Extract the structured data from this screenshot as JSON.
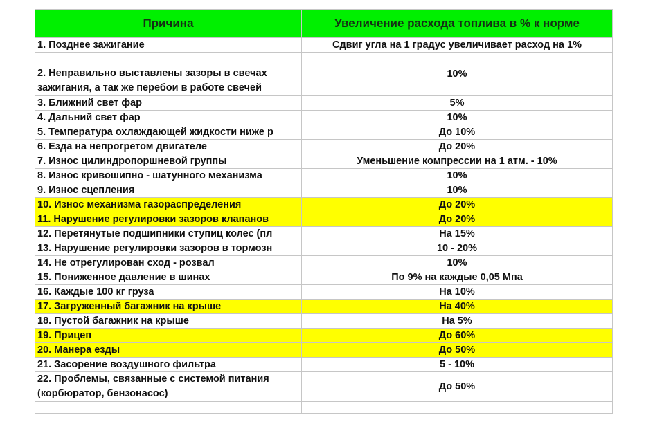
{
  "header": {
    "reason": "Причина",
    "increase": "Увеличение расхода топлива в % к норме"
  },
  "colors": {
    "header_bg": "#00f000",
    "highlight": "#ffff00",
    "grid": "#c6c6c6"
  },
  "rows": [
    {
      "reason": "1. Позднее зажигание",
      "value": "Сдвиг угла на 1 градус увеличивает расход на 1%",
      "highlighted": false
    },
    {
      "reason": "2. Неправильно выставлены зазоры в свечах зажигания, а так же перебои в работе свечей",
      "value": "10%",
      "highlighted": false
    },
    {
      "reason": "3. Ближний свет фар",
      "value": "5%",
      "highlighted": false
    },
    {
      "reason": "4. Дальний свет фар",
      "value": "10%",
      "highlighted": false
    },
    {
      "reason": "5. Температура охлаждающей жидкости ниже р",
      "value": "До 10%",
      "highlighted": false
    },
    {
      "reason": "6. Езда на непрогретом двигателе",
      "value": "До 20%",
      "highlighted": false
    },
    {
      "reason": "7. Износ цилиндропоршневой группы",
      "value": "Уменьшение компрессии на 1 атм. - 10%",
      "highlighted": false
    },
    {
      "reason": "8. Износ кривошипно - шатунного механизма",
      "value": "10%",
      "highlighted": false
    },
    {
      "reason": "9. Износ сцепления",
      "value": "10%",
      "highlighted": false
    },
    {
      "reason": "10. Износ механизма газораспределения",
      "value": "До 20%",
      "highlighted": true
    },
    {
      "reason": "11. Нарушение регулировки зазоров клапанов",
      "value": "До 20%",
      "highlighted": true
    },
    {
      "reason": "12. Перетянутые подшипники ступиц колес (пл",
      "value": "На 15%",
      "highlighted": false
    },
    {
      "reason": "13. Нарушение регулировки зазоров в тормозн",
      "value": "10 - 20%",
      "highlighted": false
    },
    {
      "reason": "14. Не отрегулирован сход - розвал",
      "value": "10%",
      "highlighted": false
    },
    {
      "reason": "15. Пониженное давление в шинах",
      "value": "По 9% на каждые 0,05 Мпа",
      "highlighted": false
    },
    {
      "reason": "16. Каждые 100 кг груза",
      "value": "На 10%",
      "highlighted": false
    },
    {
      "reason": "17. Загруженный багажник на крыше",
      "value": "На 40%",
      "highlighted": true
    },
    {
      "reason": "18. Пустой багажник на крыше",
      "value": "На 5%",
      "highlighted": false
    },
    {
      "reason": "19. Прицеп",
      "value": "До 60%",
      "highlighted": true
    },
    {
      "reason": "20. Манера езды",
      "value": "До 50%",
      "highlighted": true
    },
    {
      "reason": "21. Засорение воздушного фильтра",
      "value": "5 - 10%",
      "highlighted": false
    },
    {
      "reason": "22. Проблемы, связанные с системой питания (корбюратор, бензонасос)",
      "value": "До 50%",
      "highlighted": false
    }
  ]
}
